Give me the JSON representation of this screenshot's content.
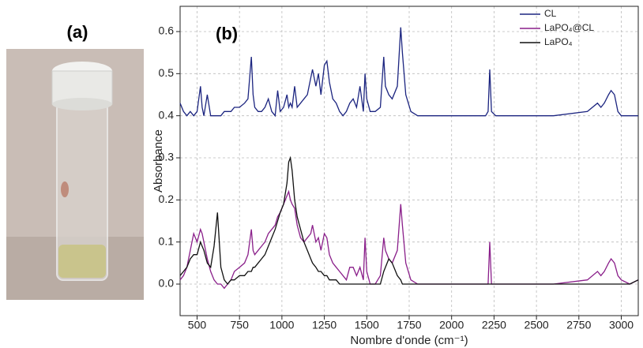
{
  "photo": {
    "label": "(a)"
  },
  "chart_data": {
    "type": "line",
    "label": "(b)",
    "x_label": "Nombre d'onde (cm⁻¹)",
    "y_label": "Absorbance",
    "xlim": [
      400,
      3100
    ],
    "ylim": [
      -0.075,
      0.66
    ],
    "xticks": [
      500,
      750,
      1000,
      1250,
      1500,
      1750,
      2000,
      2250,
      2500,
      2750,
      3000
    ],
    "yticks": [
      {
        "value": 0,
        "label": "0.0"
      },
      0.1,
      0.2,
      0.3,
      0.4,
      0.5,
      0.6
    ],
    "grid": true,
    "legend": "top-right",
    "x": [
      400,
      420,
      440,
      460,
      480,
      500,
      520,
      530,
      540,
      560,
      580,
      600,
      620,
      640,
      660,
      680,
      700,
      720,
      750,
      780,
      800,
      820,
      830,
      840,
      860,
      880,
      900,
      920,
      940,
      960,
      975,
      990,
      1010,
      1030,
      1040,
      1050,
      1060,
      1075,
      1090,
      1110,
      1130,
      1150,
      1170,
      1180,
      1200,
      1215,
      1230,
      1250,
      1265,
      1280,
      1300,
      1320,
      1340,
      1360,
      1380,
      1400,
      1420,
      1440,
      1460,
      1480,
      1490,
      1500,
      1520,
      1550,
      1580,
      1600,
      1610,
      1630,
      1650,
      1680,
      1700,
      1710,
      1730,
      1760,
      1800,
      1900,
      2000,
      2100,
      2200,
      2215,
      2225,
      2235,
      2260,
      2400,
      2600,
      2800,
      2860,
      2880,
      2900,
      2925,
      2940,
      2960,
      2980,
      3000,
      3050,
      3100
    ],
    "series": [
      {
        "name": "CL",
        "color": "#1c2580",
        "values": [
          0.43,
          0.41,
          0.4,
          0.41,
          0.4,
          0.41,
          0.47,
          0.42,
          0.4,
          0.45,
          0.4,
          0.4,
          0.4,
          0.4,
          0.41,
          0.41,
          0.41,
          0.42,
          0.42,
          0.43,
          0.44,
          0.54,
          0.45,
          0.42,
          0.41,
          0.41,
          0.42,
          0.44,
          0.41,
          0.4,
          0.46,
          0.41,
          0.42,
          0.45,
          0.42,
          0.43,
          0.42,
          0.47,
          0.42,
          0.43,
          0.44,
          0.45,
          0.49,
          0.51,
          0.47,
          0.5,
          0.45,
          0.52,
          0.53,
          0.48,
          0.44,
          0.43,
          0.41,
          0.4,
          0.41,
          0.43,
          0.44,
          0.42,
          0.47,
          0.41,
          0.5,
          0.44,
          0.41,
          0.41,
          0.42,
          0.54,
          0.47,
          0.45,
          0.44,
          0.47,
          0.61,
          0.55,
          0.45,
          0.41,
          0.4,
          0.4,
          0.4,
          0.4,
          0.4,
          0.41,
          0.51,
          0.41,
          0.4,
          0.4,
          0.4,
          0.41,
          0.43,
          0.42,
          0.43,
          0.45,
          0.46,
          0.45,
          0.41,
          0.4,
          0.4,
          0.4
        ]
      },
      {
        "name": "LaPO₄@CL",
        "color": "#8a1f8a",
        "values": [
          0.01,
          0.02,
          0.04,
          0.08,
          0.12,
          0.1,
          0.13,
          0.12,
          0.1,
          0.06,
          0.03,
          0.01,
          0.0,
          0.0,
          -0.01,
          0.0,
          0.01,
          0.03,
          0.04,
          0.05,
          0.07,
          0.13,
          0.08,
          0.07,
          0.08,
          0.09,
          0.1,
          0.12,
          0.13,
          0.14,
          0.16,
          0.17,
          0.19,
          0.21,
          0.22,
          0.2,
          0.19,
          0.18,
          0.14,
          0.11,
          0.1,
          0.11,
          0.12,
          0.14,
          0.1,
          0.11,
          0.08,
          0.12,
          0.11,
          0.07,
          0.05,
          0.04,
          0.03,
          0.02,
          0.01,
          0.04,
          0.04,
          0.02,
          0.04,
          0.01,
          0.11,
          0.03,
          0.0,
          0.0,
          0.02,
          0.11,
          0.08,
          0.06,
          0.05,
          0.08,
          0.19,
          0.14,
          0.05,
          0.01,
          0.0,
          0.0,
          0.0,
          0.0,
          0.0,
          0.0,
          0.1,
          0.0,
          0.0,
          0.0,
          0.0,
          0.01,
          0.03,
          0.02,
          0.03,
          0.05,
          0.06,
          0.05,
          0.02,
          0.01,
          0.0,
          0.01
        ]
      },
      {
        "name": "LaPO₄",
        "color": "#111111",
        "values": [
          0.02,
          0.03,
          0.04,
          0.06,
          0.07,
          0.07,
          0.1,
          0.09,
          0.08,
          0.05,
          0.04,
          0.09,
          0.17,
          0.04,
          0.01,
          0.0,
          0.01,
          0.01,
          0.02,
          0.02,
          0.03,
          0.03,
          0.04,
          0.04,
          0.05,
          0.06,
          0.07,
          0.09,
          0.11,
          0.13,
          0.15,
          0.17,
          0.19,
          0.24,
          0.29,
          0.3,
          0.27,
          0.2,
          0.16,
          0.13,
          0.1,
          0.08,
          0.06,
          0.05,
          0.04,
          0.03,
          0.03,
          0.02,
          0.02,
          0.01,
          0.01,
          0.01,
          0.0,
          0.0,
          0.0,
          0.0,
          0.0,
          0.0,
          0.0,
          0.0,
          0.0,
          0.0,
          0.0,
          0.0,
          0.0,
          0.03,
          0.04,
          0.06,
          0.05,
          0.02,
          0.01,
          0.0,
          0.0,
          0.0,
          0.0,
          0.0,
          0.0,
          0.0,
          0.0,
          0.0,
          0.0,
          0.0,
          0.0,
          0.0,
          0.0,
          0.0,
          0.0,
          0.0,
          0.0,
          0.0,
          0.0,
          0.0,
          0.0,
          0.0,
          0.0,
          0.01
        ]
      }
    ]
  }
}
